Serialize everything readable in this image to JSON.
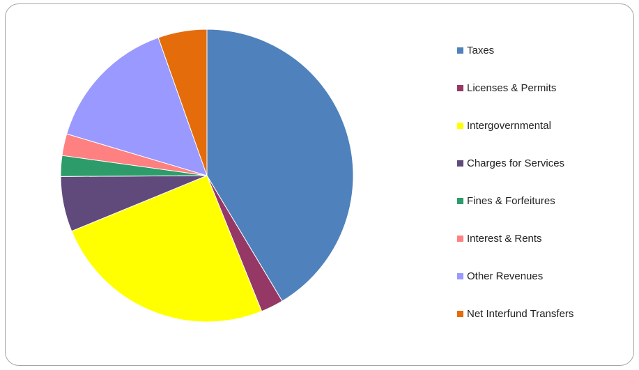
{
  "chart_data": {
    "type": "pie",
    "title": "",
    "slices": [
      {
        "label": "Taxes",
        "value": 41.4,
        "color": "#4F81BD"
      },
      {
        "label": "Licenses & Permits",
        "value": 2.5,
        "color": "#953865"
      },
      {
        "label": "Intergovernmental",
        "value": 24.9,
        "color": "#FFFF00"
      },
      {
        "label": "Charges for Services",
        "value": 6.1,
        "color": "#604A7B"
      },
      {
        "label": "Fines & Forfeitures",
        "value": 2.3,
        "color": "#2E9B6B"
      },
      {
        "label": "Interest & Rents",
        "value": 2.4,
        "color": "#FF8080"
      },
      {
        "label": "Other Revenues",
        "value": 15.0,
        "color": "#9999FF"
      },
      {
        "label": "Net Interfund Transfers",
        "value": 5.4,
        "color": "#E46C0A"
      }
    ],
    "legend_position": "right"
  }
}
